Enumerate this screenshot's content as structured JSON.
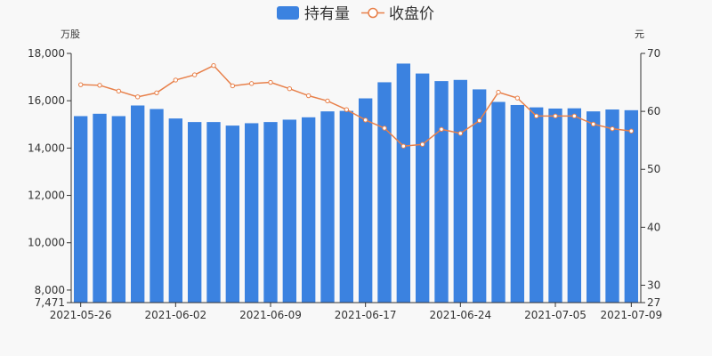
{
  "chart_data": {
    "type": "bar",
    "combo": "bar+line",
    "legend": {
      "position": "top-center",
      "items": [
        {
          "name": "持有量",
          "kind": "bar",
          "color": "#3b82e0"
        },
        {
          "name": "收盘价",
          "kind": "line",
          "color": "#e8804a"
        }
      ]
    },
    "y_left": {
      "unit": "万股",
      "min": 7471,
      "max": 18000,
      "ticks": [
        7471,
        8000,
        10000,
        12000,
        14000,
        16000,
        18000
      ],
      "tick_labels": [
        "7,471",
        "8,000",
        "10,000",
        "12,000",
        "14,000",
        "16,000",
        "18,000"
      ],
      "grid": false
    },
    "y_right": {
      "unit": "元",
      "min": 27,
      "max": 70,
      "ticks": [
        27,
        30,
        40,
        50,
        60,
        70
      ],
      "tick_labels": [
        "27",
        "30",
        "40",
        "50",
        "60",
        "70"
      ]
    },
    "x_tick_labels": [
      {
        "index": 0,
        "label": "2021-05-26"
      },
      {
        "index": 5,
        "label": "2021-06-02"
      },
      {
        "index": 10,
        "label": "2021-06-09"
      },
      {
        "index": 15,
        "label": "2021-06-17"
      },
      {
        "index": 20,
        "label": "2021-06-24"
      },
      {
        "index": 25,
        "label": "2021-07-05"
      },
      {
        "index": 29,
        "label": "2021-07-09"
      }
    ],
    "series": [
      {
        "name": "持有量",
        "type": "bar",
        "axis": "left",
        "values": [
          15350,
          15450,
          15350,
          15800,
          15650,
          15250,
          15100,
          15100,
          14950,
          15050,
          15100,
          15200,
          15300,
          15550,
          15570,
          16100,
          16780,
          17570,
          17150,
          16830,
          16880,
          16480,
          15950,
          15820,
          15720,
          15670,
          15680,
          15550,
          15630,
          15600
        ]
      },
      {
        "name": "收盘价",
        "type": "line",
        "axis": "right",
        "values": [
          64.6,
          64.5,
          63.5,
          62.5,
          63.2,
          65.4,
          66.3,
          67.9,
          64.4,
          64.8,
          65.0,
          63.9,
          62.7,
          61.8,
          60.3,
          58.5,
          57.1,
          54.0,
          54.3,
          56.9,
          56.2,
          58.4,
          63.3,
          62.3,
          59.2,
          59.2,
          59.2,
          57.8,
          57.0,
          56.6
        ]
      }
    ]
  }
}
